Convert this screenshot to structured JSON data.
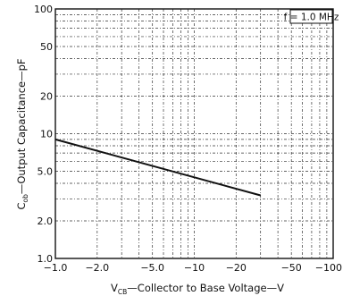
{
  "chart_data": {
    "type": "line",
    "title": "",
    "xlabel": {
      "prefix": "V",
      "subscript": "CB",
      "text": "—Collector to Base Voltage—V"
    },
    "ylabel": {
      "prefix": "C",
      "subscript": "ob",
      "text": "—Output Capacitance—pF"
    },
    "x_scale": "log",
    "y_scale": "log",
    "x_axis_note": "tick labels show negative voltage; axis runs in magnitude from 1.0 V to 100 V",
    "xlim": [
      1,
      100
    ],
    "ylim": [
      1,
      100
    ],
    "x_ticks": [
      {
        "value": 1,
        "label": "−1.0"
      },
      {
        "value": 2,
        "label": "−2.0"
      },
      {
        "value": 5,
        "label": "−5.0"
      },
      {
        "value": 10,
        "label": "−10"
      },
      {
        "value": 20,
        "label": "−20"
      },
      {
        "value": 50,
        "label": "−50"
      },
      {
        "value": 100,
        "label": "−100"
      }
    ],
    "y_ticks": [
      {
        "value": 1,
        "label": "1.0"
      },
      {
        "value": 2,
        "label": "2.0"
      },
      {
        "value": 5,
        "label": "5.0"
      },
      {
        "value": 10,
        "label": "10"
      },
      {
        "value": 20,
        "label": "20"
      },
      {
        "value": 50,
        "label": "50"
      },
      {
        "value": 100,
        "label": "100"
      }
    ],
    "grid": true,
    "annotation": "f = 1.0  MHz",
    "annotation_placement": "top-right",
    "series": [
      {
        "x": [
          1,
          30
        ],
        "y": [
          9,
          3.2
        ]
      }
    ]
  }
}
